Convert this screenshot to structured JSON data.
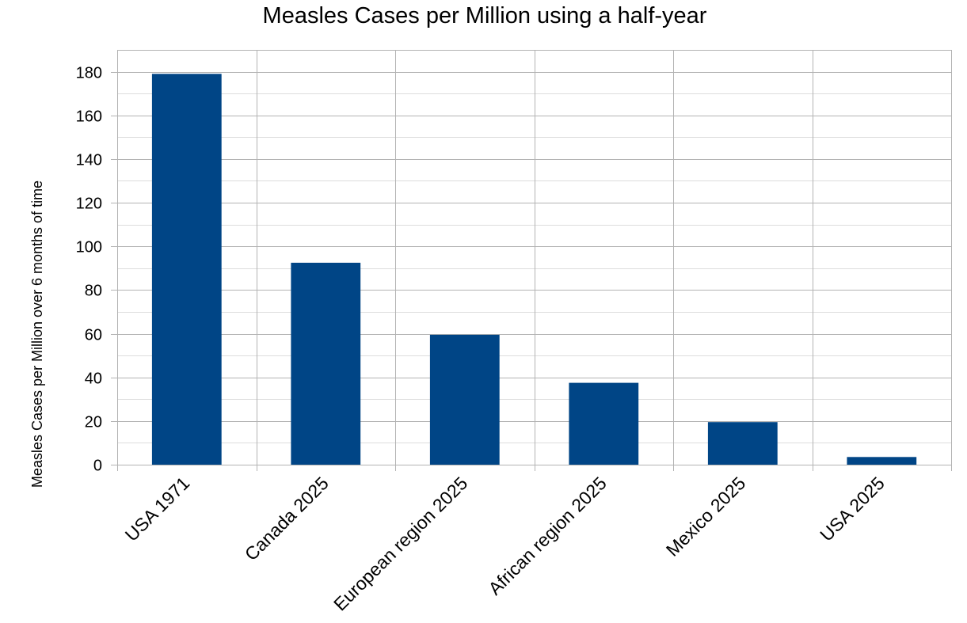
{
  "chart_data": {
    "type": "bar",
    "title": "Measles Cases per Million using a half-year",
    "xlabel": "",
    "ylabel": "Measles Cases per Million over 6 months of time",
    "categories": [
      "USA 1971",
      "Canada 2025",
      "European region 2025",
      "African region 2025",
      "Mexico 2025",
      "USA 2025"
    ],
    "values": [
      179,
      92.5,
      59.5,
      37.5,
      19.5,
      3.5
    ],
    "ylim": [
      0,
      190
    ],
    "yticks": [
      0,
      20,
      40,
      60,
      80,
      100,
      120,
      140,
      160,
      180
    ],
    "grid": true,
    "legend": "none",
    "bar_color": "#004586"
  }
}
